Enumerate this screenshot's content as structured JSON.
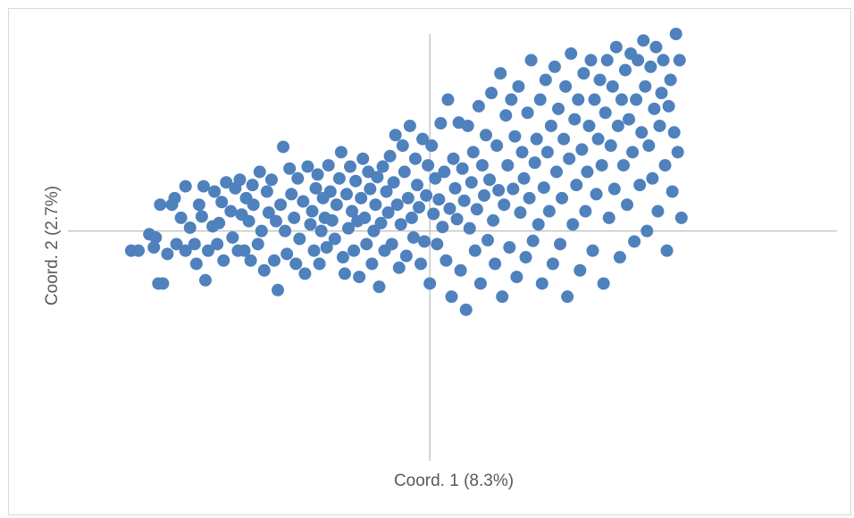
{
  "chart_data": {
    "type": "scatter",
    "xlabel": "Coord. 1 (8.3%)",
    "ylabel": "Coord. 2 (2.7%)",
    "xlim": [
      -0.4,
      0.45
    ],
    "ylim": [
      -0.35,
      0.3
    ],
    "grid": false,
    "legend": "none",
    "marker_color": "#4f81bd",
    "axis_color": "#bfbfbf",
    "series": [
      {
        "points": [
          [
            -0.33,
            -0.03
          ],
          [
            -0.322,
            -0.03
          ],
          [
            -0.31,
            -0.005
          ],
          [
            -0.303,
            -0.01
          ],
          [
            -0.305,
            -0.025
          ],
          [
            -0.29,
            -0.035
          ],
          [
            -0.3,
            -0.08
          ],
          [
            -0.295,
            -0.08
          ],
          [
            -0.298,
            0.04
          ],
          [
            -0.285,
            0.04
          ],
          [
            -0.28,
            -0.02
          ],
          [
            -0.282,
            0.05
          ],
          [
            -0.27,
            -0.03
          ],
          [
            -0.27,
            0.068
          ],
          [
            -0.275,
            0.02
          ],
          [
            -0.258,
            -0.05
          ],
          [
            -0.26,
            -0.02
          ],
          [
            -0.265,
            0.005
          ],
          [
            -0.255,
            0.04
          ],
          [
            -0.252,
            0.022
          ],
          [
            -0.25,
            0.068
          ],
          [
            -0.245,
            -0.03
          ],
          [
            -0.248,
            -0.075
          ],
          [
            -0.24,
            0.007
          ],
          [
            -0.238,
            0.06
          ],
          [
            -0.233,
            0.012
          ],
          [
            -0.235,
            -0.02
          ],
          [
            -0.23,
            0.044
          ],
          [
            -0.225,
            0.074
          ],
          [
            -0.228,
            -0.045
          ],
          [
            -0.22,
            0.03
          ],
          [
            -0.218,
            -0.01
          ],
          [
            -0.215,
            0.065
          ],
          [
            -0.212,
            -0.03
          ],
          [
            -0.21,
            0.078
          ],
          [
            -0.208,
            0.025
          ],
          [
            -0.205,
            -0.03
          ],
          [
            -0.203,
            0.05
          ],
          [
            -0.2,
            0.015
          ],
          [
            -0.198,
            -0.045
          ],
          [
            -0.196,
            0.07
          ],
          [
            -0.195,
            0.04
          ],
          [
            -0.19,
            -0.02
          ],
          [
            -0.188,
            0.09
          ],
          [
            -0.186,
            0.0
          ],
          [
            -0.183,
            -0.06
          ],
          [
            -0.18,
            0.06
          ],
          [
            -0.178,
            0.028
          ],
          [
            -0.175,
            0.078
          ],
          [
            -0.172,
            -0.045
          ],
          [
            -0.17,
            0.015
          ],
          [
            -0.168,
            -0.09
          ],
          [
            -0.165,
            0.04
          ],
          [
            -0.162,
            0.128
          ],
          [
            -0.16,
            0.0
          ],
          [
            -0.158,
            -0.035
          ],
          [
            -0.155,
            0.095
          ],
          [
            -0.153,
            0.056
          ],
          [
            -0.15,
            0.02
          ],
          [
            -0.148,
            -0.05
          ],
          [
            -0.146,
            0.08
          ],
          [
            -0.144,
            -0.012
          ],
          [
            -0.14,
            0.045
          ],
          [
            -0.138,
            -0.065
          ],
          [
            -0.135,
            0.098
          ],
          [
            -0.132,
            0.01
          ],
          [
            -0.13,
            0.03
          ],
          [
            -0.128,
            -0.03
          ],
          [
            -0.126,
            0.065
          ],
          [
            -0.124,
            0.086
          ],
          [
            -0.122,
            -0.05
          ],
          [
            -0.12,
            0.0
          ],
          [
            -0.118,
            0.05
          ],
          [
            -0.116,
            0.02
          ],
          [
            -0.114,
            -0.025
          ],
          [
            -0.112,
            0.1
          ],
          [
            -0.11,
            0.06
          ],
          [
            -0.108,
            0.016
          ],
          [
            -0.105,
            -0.012
          ],
          [
            -0.103,
            0.04
          ],
          [
            -0.1,
            0.08
          ],
          [
            -0.098,
            0.12
          ],
          [
            -0.096,
            -0.04
          ],
          [
            -0.094,
            -0.065
          ],
          [
            -0.092,
            0.056
          ],
          [
            -0.09,
            0.004
          ],
          [
            -0.088,
            0.098
          ],
          [
            -0.086,
            0.03
          ],
          [
            -0.084,
            -0.03
          ],
          [
            -0.082,
            0.076
          ],
          [
            -0.08,
            0.015
          ],
          [
            -0.078,
            -0.07
          ],
          [
            -0.076,
            0.05
          ],
          [
            -0.074,
            0.11
          ],
          [
            -0.072,
            0.02
          ],
          [
            -0.07,
            -0.02
          ],
          [
            -0.068,
            0.09
          ],
          [
            -0.066,
            0.064
          ],
          [
            -0.064,
            -0.05
          ],
          [
            -0.062,
            0.0
          ],
          [
            -0.06,
            0.04
          ],
          [
            -0.058,
            0.082
          ],
          [
            -0.056,
            -0.085
          ],
          [
            -0.054,
            0.012
          ],
          [
            -0.052,
            0.098
          ],
          [
            -0.05,
            -0.03
          ],
          [
            -0.048,
            0.06
          ],
          [
            -0.046,
            0.028
          ],
          [
            -0.044,
            0.114
          ],
          [
            -0.042,
            -0.02
          ],
          [
            -0.04,
            0.074
          ],
          [
            -0.038,
            0.146
          ],
          [
            -0.036,
            0.04
          ],
          [
            -0.034,
            -0.056
          ],
          [
            -0.032,
            0.01
          ],
          [
            -0.03,
            0.13
          ],
          [
            -0.028,
            0.09
          ],
          [
            -0.026,
            -0.038
          ],
          [
            -0.024,
            0.05
          ],
          [
            -0.022,
            0.16
          ],
          [
            -0.02,
            0.02
          ],
          [
            -0.018,
            -0.01
          ],
          [
            -0.016,
            0.11
          ],
          [
            -0.014,
            0.07
          ],
          [
            -0.012,
            0.036
          ],
          [
            -0.01,
            -0.05
          ],
          [
            -0.008,
            0.14
          ],
          [
            -0.006,
            -0.016
          ],
          [
            -0.004,
            0.054
          ],
          [
            -0.002,
            0.1
          ],
          [
            -0.0,
            -0.08
          ],
          [
            0.002,
            0.13
          ],
          [
            0.004,
            0.026
          ],
          [
            0.006,
            0.08
          ],
          [
            0.008,
            -0.02
          ],
          [
            0.01,
            0.048
          ],
          [
            0.012,
            0.164
          ],
          [
            0.014,
            0.006
          ],
          [
            0.016,
            0.09
          ],
          [
            0.018,
            -0.045
          ],
          [
            0.02,
            0.2
          ],
          [
            0.022,
            0.034
          ],
          [
            0.024,
            -0.1
          ],
          [
            0.026,
            0.11
          ],
          [
            0.028,
            0.065
          ],
          [
            0.03,
            0.018
          ],
          [
            0.032,
            0.165
          ],
          [
            0.034,
            -0.06
          ],
          [
            0.036,
            0.095
          ],
          [
            0.038,
            0.046
          ],
          [
            0.04,
            -0.12
          ],
          [
            0.042,
            0.16
          ],
          [
            0.044,
            0.004
          ],
          [
            0.046,
            0.074
          ],
          [
            0.048,
            0.12
          ],
          [
            0.05,
            -0.03
          ],
          [
            0.052,
            0.033
          ],
          [
            0.054,
            0.19
          ],
          [
            0.056,
            -0.08
          ],
          [
            0.058,
            0.1
          ],
          [
            0.06,
            0.054
          ],
          [
            0.062,
            0.146
          ],
          [
            0.064,
            -0.014
          ],
          [
            0.066,
            0.078
          ],
          [
            0.068,
            0.21
          ],
          [
            0.07,
            0.016
          ],
          [
            0.072,
            -0.05
          ],
          [
            0.074,
            0.13
          ],
          [
            0.076,
            0.062
          ],
          [
            0.078,
            0.24
          ],
          [
            0.08,
            -0.1
          ],
          [
            0.082,
            0.04
          ],
          [
            0.084,
            0.176
          ],
          [
            0.086,
            0.1
          ],
          [
            0.088,
            -0.025
          ],
          [
            0.09,
            0.2
          ],
          [
            0.092,
            0.064
          ],
          [
            0.094,
            0.144
          ],
          [
            0.096,
            -0.07
          ],
          [
            0.098,
            0.22
          ],
          [
            0.1,
            0.028
          ],
          [
            0.102,
            0.12
          ],
          [
            0.104,
            0.08
          ],
          [
            0.106,
            -0.04
          ],
          [
            0.108,
            0.18
          ],
          [
            0.11,
            0.05
          ],
          [
            0.112,
            0.26
          ],
          [
            0.114,
            -0.015
          ],
          [
            0.116,
            0.104
          ],
          [
            0.118,
            0.14
          ],
          [
            0.12,
            0.01
          ],
          [
            0.122,
            0.2
          ],
          [
            0.124,
            -0.08
          ],
          [
            0.126,
            0.066
          ],
          [
            0.128,
            0.23
          ],
          [
            0.13,
            0.12
          ],
          [
            0.132,
            0.03
          ],
          [
            0.134,
            0.16
          ],
          [
            0.136,
            -0.05
          ],
          [
            0.138,
            0.25
          ],
          [
            0.14,
            0.09
          ],
          [
            0.142,
            0.186
          ],
          [
            0.144,
            -0.02
          ],
          [
            0.146,
            0.05
          ],
          [
            0.148,
            0.14
          ],
          [
            0.15,
            0.22
          ],
          [
            0.152,
            -0.1
          ],
          [
            0.154,
            0.11
          ],
          [
            0.156,
            0.27
          ],
          [
            0.158,
            0.01
          ],
          [
            0.16,
            0.17
          ],
          [
            0.162,
            0.07
          ],
          [
            0.164,
            0.2
          ],
          [
            0.166,
            -0.06
          ],
          [
            0.168,
            0.124
          ],
          [
            0.17,
            0.24
          ],
          [
            0.172,
            0.03
          ],
          [
            0.174,
            0.09
          ],
          [
            0.176,
            0.16
          ],
          [
            0.178,
            0.26
          ],
          [
            0.18,
            -0.03
          ],
          [
            0.182,
            0.2
          ],
          [
            0.184,
            0.056
          ],
          [
            0.186,
            0.14
          ],
          [
            0.188,
            0.23
          ],
          [
            0.19,
            0.1
          ],
          [
            0.192,
            -0.08
          ],
          [
            0.194,
            0.18
          ],
          [
            0.196,
            0.26
          ],
          [
            0.198,
            0.02
          ],
          [
            0.2,
            0.13
          ],
          [
            0.202,
            0.22
          ],
          [
            0.204,
            0.064
          ],
          [
            0.206,
            0.28
          ],
          [
            0.208,
            0.16
          ],
          [
            0.21,
            -0.04
          ],
          [
            0.212,
            0.2
          ],
          [
            0.214,
            0.1
          ],
          [
            0.216,
            0.245
          ],
          [
            0.218,
            0.04
          ],
          [
            0.22,
            0.17
          ],
          [
            0.222,
            0.27
          ],
          [
            0.224,
            0.12
          ],
          [
            0.226,
            -0.016
          ],
          [
            0.228,
            0.2
          ],
          [
            0.23,
            0.26
          ],
          [
            0.232,
            0.07
          ],
          [
            0.234,
            0.15
          ],
          [
            0.236,
            0.29
          ],
          [
            0.238,
            0.22
          ],
          [
            0.24,
            0.0
          ],
          [
            0.242,
            0.13
          ],
          [
            0.244,
            0.25
          ],
          [
            0.246,
            0.08
          ],
          [
            0.248,
            0.186
          ],
          [
            0.25,
            0.28
          ],
          [
            0.252,
            0.03
          ],
          [
            0.254,
            0.16
          ],
          [
            0.256,
            0.21
          ],
          [
            0.258,
            0.26
          ],
          [
            0.26,
            0.1
          ],
          [
            0.262,
            -0.03
          ],
          [
            0.264,
            0.19
          ],
          [
            0.266,
            0.23
          ],
          [
            0.268,
            0.06
          ],
          [
            0.27,
            0.15
          ],
          [
            0.272,
            0.3
          ],
          [
            0.274,
            0.12
          ],
          [
            0.276,
            0.26
          ],
          [
            0.278,
            0.02
          ]
        ]
      }
    ]
  }
}
